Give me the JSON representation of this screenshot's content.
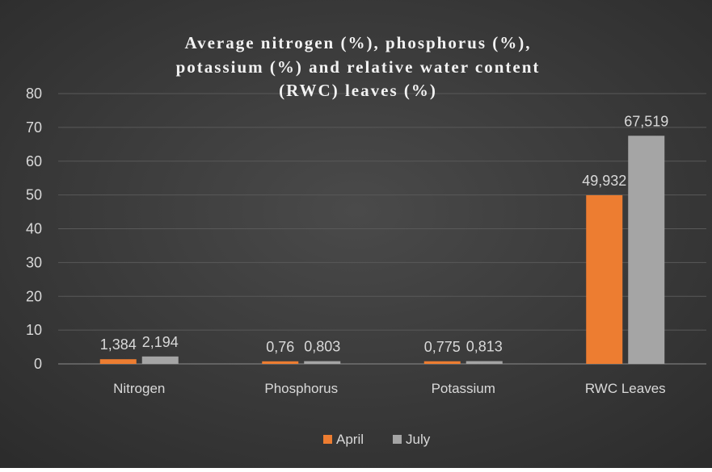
{
  "chart_data": {
    "type": "bar",
    "title_lines": [
      "Average nitrogen (%), phosphorus (%),",
      "potassium (%) and relative water content",
      "(RWC) leaves (%)"
    ],
    "categories": [
      "Nitrogen",
      "Phosphorus",
      "Potassium",
      "RWC Leaves"
    ],
    "series": [
      {
        "name": "April",
        "values": [
          1.384,
          0.76,
          0.775,
          49.932
        ],
        "labels": [
          "1,384",
          "0,76",
          "0,775",
          "49,932"
        ],
        "color": "#ed7d31"
      },
      {
        "name": "July",
        "values": [
          2.194,
          0.803,
          0.813,
          67.519
        ],
        "labels": [
          "2,194",
          "0,803",
          "0,813",
          "67,519"
        ],
        "color": "#a5a5a5"
      }
    ],
    "ylim": [
      0,
      80
    ],
    "yticks": [
      "0",
      "10",
      "20",
      "30",
      "40",
      "50",
      "60",
      "70",
      "80"
    ],
    "grid": true,
    "legend_position": "bottom",
    "background": "#404040",
    "gridline_color": "#595959"
  }
}
